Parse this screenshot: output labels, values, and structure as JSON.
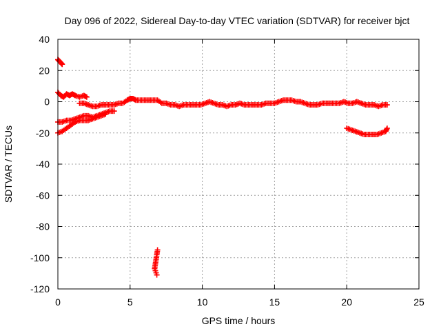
{
  "chart_data": {
    "type": "scatter",
    "title": "Day 096 of 2022, Sidereal Day-to-day VTEC variation (SDTVAR) for receiver bjct",
    "xlabel": "GPS time / hours",
    "ylabel": "SDTVAR / TECUs",
    "xlim": [
      0,
      25
    ],
    "ylim": [
      -120,
      40
    ],
    "xticks": [
      0,
      5,
      10,
      15,
      20,
      25
    ],
    "yticks": [
      -120,
      -100,
      -80,
      -60,
      -40,
      -20,
      0,
      20,
      40
    ],
    "grid": true,
    "marker": "plus",
    "color": "#ff0000",
    "series": [
      {
        "points": [
          [
            0.0,
            27
          ],
          [
            0.1,
            26
          ],
          [
            0.2,
            25
          ],
          [
            0.3,
            24
          ]
        ]
      },
      {
        "points": [
          [
            0.0,
            6
          ],
          [
            0.2,
            4
          ],
          [
            0.4,
            3
          ],
          [
            0.6,
            5
          ],
          [
            0.8,
            4
          ],
          [
            1.0,
            5
          ],
          [
            1.2,
            4
          ],
          [
            1.5,
            3
          ],
          [
            1.8,
            4
          ],
          [
            2.0,
            3
          ]
        ]
      },
      {
        "points": [
          [
            1.5,
            -1
          ],
          [
            1.8,
            -1
          ],
          [
            2.1,
            -2
          ],
          [
            2.4,
            -3
          ],
          [
            2.7,
            -3
          ],
          [
            3.0,
            -2
          ],
          [
            3.3,
            -2
          ],
          [
            3.6,
            -2
          ],
          [
            3.9,
            -2
          ],
          [
            4.2,
            -1
          ],
          [
            4.5,
            -1
          ],
          [
            4.8,
            1
          ],
          [
            5.0,
            2
          ],
          [
            5.2,
            2
          ],
          [
            5.4,
            1
          ],
          [
            5.7,
            1
          ],
          [
            6.0,
            1
          ],
          [
            6.3,
            1
          ],
          [
            6.6,
            1
          ],
          [
            6.9,
            1
          ],
          [
            7.2,
            -1
          ],
          [
            7.5,
            -1
          ],
          [
            7.8,
            -2
          ],
          [
            8.1,
            -2
          ],
          [
            8.4,
            -3
          ],
          [
            8.7,
            -2
          ],
          [
            9.0,
            -2
          ],
          [
            9.3,
            -2
          ],
          [
            9.6,
            -2
          ],
          [
            9.9,
            -2
          ],
          [
            10.2,
            -1
          ],
          [
            10.5,
            0
          ],
          [
            10.8,
            -1
          ],
          [
            11.1,
            -2
          ],
          [
            11.4,
            -2
          ],
          [
            11.7,
            -3
          ],
          [
            12.0,
            -2
          ],
          [
            12.3,
            -2
          ],
          [
            12.6,
            -1
          ],
          [
            12.9,
            -2
          ],
          [
            13.2,
            -2
          ],
          [
            13.5,
            -2
          ],
          [
            13.8,
            -2
          ],
          [
            14.1,
            -2
          ],
          [
            14.4,
            -1
          ],
          [
            14.7,
            -1
          ],
          [
            15.0,
            -1
          ],
          [
            15.3,
            0
          ],
          [
            15.6,
            1
          ],
          [
            15.9,
            1
          ],
          [
            16.2,
            1
          ],
          [
            16.5,
            0
          ],
          [
            16.8,
            0
          ],
          [
            17.1,
            -1
          ],
          [
            17.4,
            -2
          ],
          [
            17.7,
            -2
          ],
          [
            18.0,
            -2
          ],
          [
            18.3,
            -1
          ],
          [
            18.6,
            -1
          ],
          [
            18.9,
            -1
          ],
          [
            19.2,
            -1
          ],
          [
            19.5,
            -1
          ],
          [
            19.8,
            0
          ],
          [
            20.1,
            -1
          ],
          [
            20.4,
            -1
          ],
          [
            20.7,
            0
          ],
          [
            21.0,
            -1
          ],
          [
            21.3,
            -2
          ],
          [
            21.6,
            -2
          ],
          [
            21.9,
            -2
          ],
          [
            22.2,
            -3
          ],
          [
            22.5,
            -2
          ],
          [
            22.8,
            -2
          ]
        ]
      },
      {
        "points": [
          [
            0.0,
            -13
          ],
          [
            0.3,
            -13
          ],
          [
            0.6,
            -12
          ],
          [
            0.9,
            -12
          ],
          [
            1.2,
            -11
          ],
          [
            1.5,
            -10
          ],
          [
            1.8,
            -9
          ],
          [
            2.1,
            -9
          ],
          [
            2.4,
            -10
          ],
          [
            2.7,
            -9
          ],
          [
            3.0,
            -8
          ],
          [
            3.3,
            -7
          ],
          [
            3.6,
            -6
          ],
          [
            3.9,
            -6
          ]
        ]
      },
      {
        "points": [
          [
            0.0,
            -20
          ],
          [
            0.3,
            -19
          ],
          [
            0.6,
            -17
          ],
          [
            0.9,
            -15
          ],
          [
            1.2,
            -13
          ],
          [
            1.5,
            -12
          ],
          [
            1.8,
            -12
          ],
          [
            2.1,
            -12
          ],
          [
            2.4,
            -11
          ],
          [
            2.7,
            -10
          ],
          [
            3.0,
            -9
          ],
          [
            3.3,
            -8
          ]
        ]
      },
      {
        "points": [
          [
            6.9,
            -95
          ],
          [
            6.85,
            -98
          ],
          [
            6.8,
            -101
          ],
          [
            6.75,
            -104
          ],
          [
            6.7,
            -107
          ],
          [
            6.85,
            -111
          ]
        ]
      },
      {
        "points": [
          [
            20.0,
            -17
          ],
          [
            20.3,
            -18
          ],
          [
            20.6,
            -19
          ],
          [
            20.9,
            -20
          ],
          [
            21.2,
            -21
          ],
          [
            21.5,
            -21
          ],
          [
            21.8,
            -21
          ],
          [
            22.1,
            -21
          ],
          [
            22.4,
            -20
          ],
          [
            22.7,
            -19
          ],
          [
            22.8,
            -17
          ]
        ]
      }
    ]
  }
}
